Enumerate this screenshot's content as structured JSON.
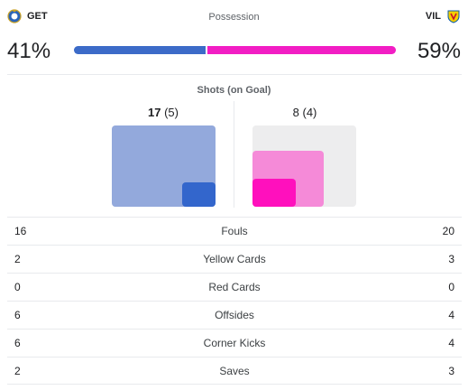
{
  "home": {
    "abbr": "GET",
    "possession": "41%",
    "possession_value": 41,
    "shots": "17",
    "shots_on_goal": "(5)",
    "shots_value": 17,
    "on_goal_value": 5
  },
  "away": {
    "abbr": "VIL",
    "possession": "59%",
    "possession_value": 59,
    "shots": "8",
    "shots_on_goal": "(4)",
    "shots_value": 8,
    "on_goal_value": 4
  },
  "possession_title": "Possession",
  "shots_title": "Shots (on Goal)",
  "stats": [
    {
      "name": "Fouls",
      "home": "16",
      "away": "20"
    },
    {
      "name": "Yellow Cards",
      "home": "2",
      "away": "3"
    },
    {
      "name": "Red Cards",
      "home": "0",
      "away": "0"
    },
    {
      "name": "Offsides",
      "home": "6",
      "away": "4"
    },
    {
      "name": "Corner Kicks",
      "home": "6",
      "away": "4"
    },
    {
      "name": "Saves",
      "home": "2",
      "away": "3"
    }
  ],
  "colors": {
    "home": "#3366cc",
    "away": "#ff10bd"
  },
  "icons": {
    "home_crest": "getafe-crest-icon",
    "away_crest": "villarreal-crest-icon"
  }
}
